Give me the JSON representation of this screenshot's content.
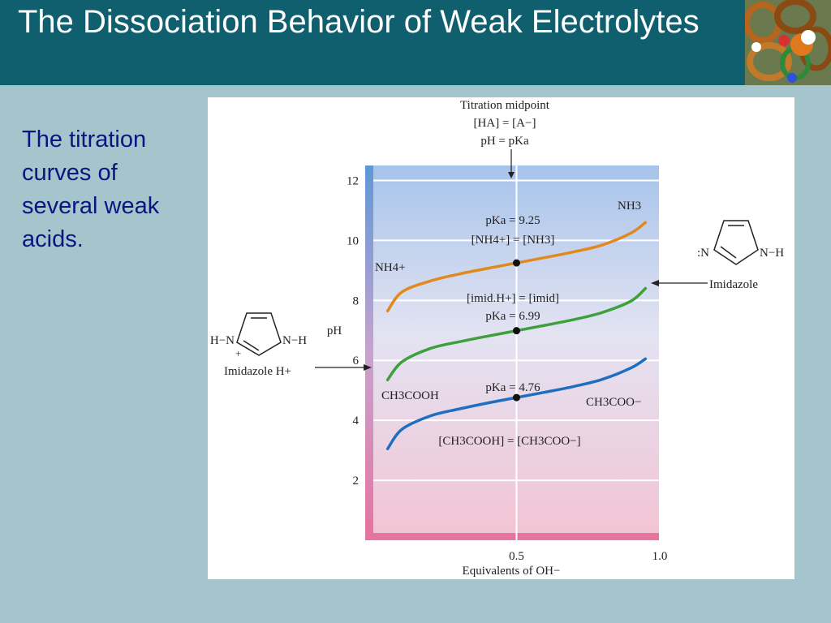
{
  "slide": {
    "title": "The Dissociation Behavior of Weak Electrolytes",
    "body_text": "The titration curves of several weak acids."
  },
  "figure": {
    "midpoint_annotation": [
      "Titration midpoint",
      "[HA] = [A−]",
      "pH = pKa"
    ],
    "nh3_pka_label": "pKa = 9.25",
    "nh4_eq_label": "[NH4+] = [NH3]",
    "imid_eq_label": "[imid.H+] = [imid]",
    "imid_pka_label": "pKa = 6.99",
    "acetic_pka_label": "pKa = 4.76",
    "acetic_eq_label": "[CH3COOH] = [CH3COO−]",
    "nh4_label": "NH4+",
    "nh3_label": "NH3",
    "ch3cooh_label": "CH3COOH",
    "ch3coo_label": "CH3COO−",
    "imidazole_label": "Imidazole",
    "imidazole_h_label": "Imidazole H+",
    "imidazole_struct": {
      "left_n": ":N",
      "right_nh": "N−H"
    },
    "imidazole_h_struct": {
      "left_hn": "H−N",
      "right_nh": "N−H",
      "plus": "+"
    }
  },
  "chart_data": {
    "type": "line",
    "xlabel": "Equivalents of OH−",
    "ylabel": "pH",
    "xlim": [
      0,
      1.0
    ],
    "ylim": [
      0,
      12.5
    ],
    "x_ticks": [
      0.5,
      1.0
    ],
    "y_ticks": [
      2,
      4,
      6,
      8,
      10,
      12
    ],
    "grid": true,
    "midpoint_x": 0.5,
    "series": [
      {
        "name": "NH4+",
        "pKa": 9.25,
        "color": "#e08a1e",
        "points": [
          [
            0.05,
            7.65
          ],
          [
            0.1,
            8.28
          ],
          [
            0.2,
            8.65
          ],
          [
            0.3,
            8.88
          ],
          [
            0.4,
            9.07
          ],
          [
            0.5,
            9.25
          ],
          [
            0.6,
            9.43
          ],
          [
            0.7,
            9.62
          ],
          [
            0.8,
            9.85
          ],
          [
            0.9,
            10.25
          ],
          [
            0.95,
            10.6
          ]
        ]
      },
      {
        "name": "",
        "pKa": 6.99,
        "color": "#3da03d",
        "points": [
          [
            0.05,
            5.35
          ],
          [
            0.1,
            5.95
          ],
          [
            0.2,
            6.4
          ],
          [
            0.3,
            6.62
          ],
          [
            0.4,
            6.81
          ],
          [
            0.5,
            6.99
          ],
          [
            0.6,
            7.17
          ],
          [
            0.7,
            7.36
          ],
          [
            0.8,
            7.6
          ],
          [
            0.9,
            7.98
          ],
          [
            0.95,
            8.4
          ]
        ]
      },
      {
        "name": "CH3COOH",
        "pKa": 4.76,
        "color": "#1f6fc0",
        "points": [
          [
            0.05,
            3.05
          ],
          [
            0.1,
            3.7
          ],
          [
            0.2,
            4.15
          ],
          [
            0.3,
            4.38
          ],
          [
            0.4,
            4.58
          ],
          [
            0.5,
            4.76
          ],
          [
            0.6,
            4.94
          ],
          [
            0.7,
            5.13
          ],
          [
            0.8,
            5.37
          ],
          [
            0.9,
            5.75
          ],
          [
            0.95,
            6.05
          ]
        ]
      }
    ]
  }
}
